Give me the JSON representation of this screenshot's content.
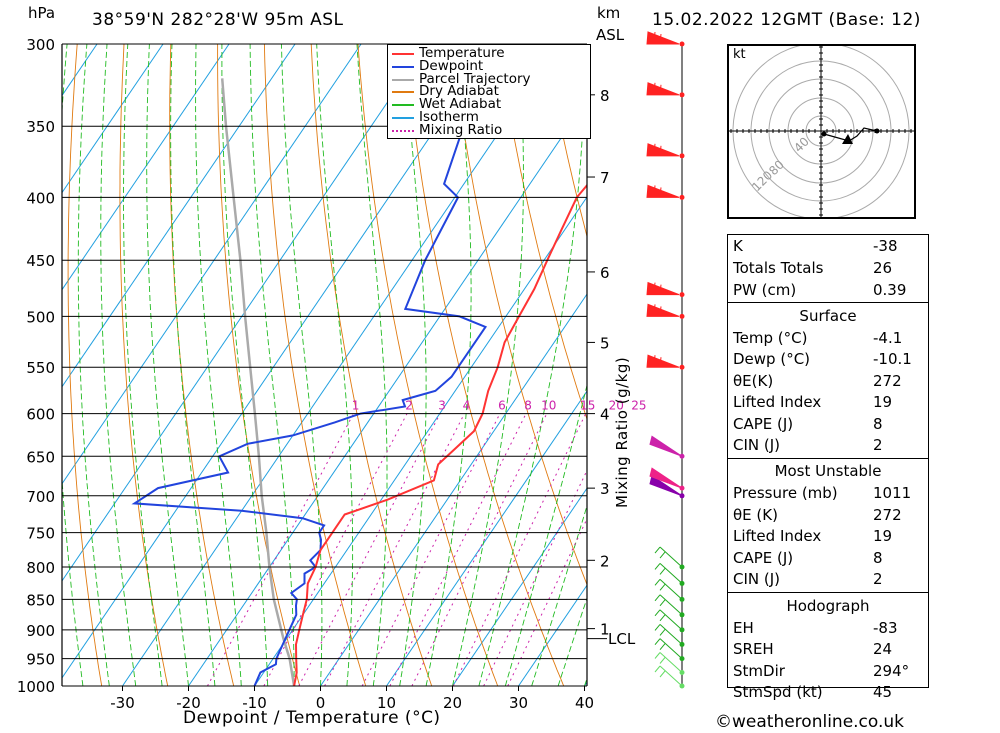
{
  "header": {
    "pressure_unit": "hPa",
    "location": "38°59'N  282°28'W  95m  ASL",
    "km_unit": "km",
    "asl_label": "ASL",
    "datetime": "15.02.2022  12GMT  (Base: 12)"
  },
  "chart_data": {
    "type": "line",
    "title": "38°59'N  282°28'W  95m  ASL",
    "xlabel": "Dewpoint / Temperature (°C)",
    "ylabel": "hPa",
    "xlim": [
      -40,
      40
    ],
    "ylim": [
      1000,
      300
    ],
    "y_scale": "log",
    "x_ticks": [
      -30,
      -20,
      -10,
      0,
      10,
      20,
      30,
      40
    ],
    "pressure_levels": [
      300,
      350,
      400,
      450,
      500,
      550,
      600,
      650,
      700,
      750,
      800,
      850,
      900,
      950,
      1000
    ],
    "km_ticks": [
      {
        "label": "8",
        "p": 330
      },
      {
        "label": "7",
        "p": 385
      },
      {
        "label": "6",
        "p": 460
      },
      {
        "label": "5",
        "p": 525
      },
      {
        "label": "4",
        "p": 600
      },
      {
        "label": "3",
        "p": 690
      },
      {
        "label": "2",
        "p": 790
      },
      {
        "label": "1",
        "p": 898
      }
    ],
    "lcl_label": "LCL",
    "lcl_p": 915,
    "mixing_ratio_title": "Mixing Ratio (g/kg)",
    "mixing_ratio_labels": [
      "1",
      "2",
      "3",
      "4",
      "6",
      "8",
      "10",
      "15",
      "20",
      "25"
    ],
    "legend": [
      "Temperature",
      "Dewpoint",
      "Parcel Trajectory",
      "Dry Adiabat",
      "Wet Adiabat",
      "Isotherm",
      "Mixing Ratio"
    ],
    "legend_position": "top-right",
    "colors": {
      "temperature": "#ff3333",
      "dewpoint": "#2244dd",
      "parcel": "#aaaaaa",
      "dry_adiabat": "#e07a10",
      "wet_adiabat": "#22bb22",
      "isotherm": "#22a0e0",
      "mixing_ratio": "#cc22aa"
    },
    "series": [
      {
        "name": "Temperature",
        "points": [
          {
            "p": 1000,
            "t": -4.0
          },
          {
            "p": 975,
            "t": -5.0
          },
          {
            "p": 950,
            "t": -6.5
          },
          {
            "p": 925,
            "t": -8.0
          },
          {
            "p": 900,
            "t": -9.0
          },
          {
            "p": 875,
            "t": -10.0
          },
          {
            "p": 850,
            "t": -11.0
          },
          {
            "p": 825,
            "t": -12.5
          },
          {
            "p": 800,
            "t": -13.0
          },
          {
            "p": 775,
            "t": -14.0
          },
          {
            "p": 750,
            "t": -14.0
          },
          {
            "p": 725,
            "t": -14.0
          },
          {
            "p": 705,
            "t": -9.0
          },
          {
            "p": 680,
            "t": -4.0
          },
          {
            "p": 660,
            "t": -5.0
          },
          {
            "p": 640,
            "t": -4.0
          },
          {
            "p": 620,
            "t": -3.0
          },
          {
            "p": 600,
            "t": -3.5
          },
          {
            "p": 575,
            "t": -5.0
          },
          {
            "p": 550,
            "t": -6.0
          },
          {
            "p": 525,
            "t": -7.5
          },
          {
            "p": 500,
            "t": -8.0
          },
          {
            "p": 475,
            "t": -8.5
          },
          {
            "p": 450,
            "t": -9.5
          },
          {
            "p": 425,
            "t": -10.5
          },
          {
            "p": 400,
            "t": -11.5
          },
          {
            "p": 385,
            "t": -11.0
          },
          {
            "p": 370,
            "t": -11.0
          },
          {
            "p": 350,
            "t": -10.0
          },
          {
            "p": 325,
            "t": -8.5
          },
          {
            "p": 310,
            "t": -6.5
          },
          {
            "p": 300,
            "t": -4.0
          }
        ]
      },
      {
        "name": "Dewpoint",
        "points": [
          {
            "p": 1000,
            "t": -10.0
          },
          {
            "p": 975,
            "t": -10.5
          },
          {
            "p": 960,
            "t": -9.0
          },
          {
            "p": 950,
            "t": -9.5
          },
          {
            "p": 925,
            "t": -10.0
          },
          {
            "p": 900,
            "t": -10.5
          },
          {
            "p": 875,
            "t": -11.0
          },
          {
            "p": 860,
            "t": -12.0
          },
          {
            "p": 850,
            "t": -12.5
          },
          {
            "p": 840,
            "t": -14.0
          },
          {
            "p": 825,
            "t": -13.0
          },
          {
            "p": 810,
            "t": -14.0
          },
          {
            "p": 800,
            "t": -13.0
          },
          {
            "p": 790,
            "t": -14.5
          },
          {
            "p": 775,
            "t": -14.0
          },
          {
            "p": 760,
            "t": -15.0
          },
          {
            "p": 750,
            "t": -16.0
          },
          {
            "p": 740,
            "t": -16.0
          },
          {
            "p": 730,
            "t": -20.0
          },
          {
            "p": 720,
            "t": -30.0
          },
          {
            "p": 710,
            "t": -47.0
          },
          {
            "p": 690,
            "t": -45.0
          },
          {
            "p": 670,
            "t": -36.0
          },
          {
            "p": 650,
            "t": -39.0
          },
          {
            "p": 635,
            "t": -36.0
          },
          {
            "p": 625,
            "t": -30.0
          },
          {
            "p": 610,
            "t": -25.0
          },
          {
            "p": 600,
            "t": -22.0
          },
          {
            "p": 592,
            "t": -16.0
          },
          {
            "p": 585,
            "t": -17.0
          },
          {
            "p": 575,
            "t": -13.0
          },
          {
            "p": 560,
            "t": -12.0
          },
          {
            "p": 545,
            "t": -12.0
          },
          {
            "p": 510,
            "t": -12.0
          },
          {
            "p": 500,
            "t": -17.0
          },
          {
            "p": 493,
            "t": -26.0
          },
          {
            "p": 450,
            "t": -28.0
          },
          {
            "p": 400,
            "t": -29.5
          },
          {
            "p": 390,
            "t": -33.0
          },
          {
            "p": 350,
            "t": -36.0
          },
          {
            "p": 325,
            "t": -37.0
          },
          {
            "p": 300,
            "t": -34.0
          }
        ]
      },
      {
        "name": "Parcel Trajectory",
        "points": [
          {
            "p": 1000,
            "t": -4.0
          },
          {
            "p": 950,
            "t": -7.5
          },
          {
            "p": 915,
            "t": -10.5
          },
          {
            "p": 850,
            "t": -16.0
          },
          {
            "p": 800,
            "t": -20.0
          },
          {
            "p": 750,
            "t": -24.0
          },
          {
            "p": 700,
            "t": -28.5
          },
          {
            "p": 650,
            "t": -33.0
          },
          {
            "p": 600,
            "t": -38.0
          },
          {
            "p": 550,
            "t": -43.5
          },
          {
            "p": 500,
            "t": -49.5
          },
          {
            "p": 450,
            "t": -56.0
          },
          {
            "p": 400,
            "t": -63.5
          },
          {
            "p": 350,
            "t": -72.0
          },
          {
            "p": 320,
            "t": -77.5
          }
        ]
      }
    ]
  },
  "winds": {
    "levels": [
      1000,
      975,
      950,
      925,
      900,
      875,
      850,
      825,
      800,
      700,
      690,
      650,
      550,
      500,
      480,
      400,
      370,
      330,
      300
    ],
    "colors": [
      "#66dd66",
      "#66dd66",
      "#22aa22",
      "#22aa22",
      "#22aa22",
      "#22aa22",
      "#22aa22",
      "#22aa22",
      "#22aa22",
      "#8800aa",
      "#ee2288",
      "#cc22aa",
      "#ff2222",
      "#ff2222",
      "#ff2222",
      "#ff2222",
      "#ff2222",
      "#ff2222",
      "#ff2222"
    ]
  },
  "hodograph": {
    "unit": "kt",
    "ring_labels": [
      "40",
      "80",
      "120"
    ]
  },
  "indices": {
    "k": {
      "label": "K",
      "value": "-38"
    },
    "tt": {
      "label": "Totals Totals",
      "value": "26"
    },
    "pw": {
      "label": "PW (cm)",
      "value": "0.39"
    }
  },
  "surface": {
    "title": "Surface",
    "temp": {
      "label": "Temp (°C)",
      "value": "-4.1"
    },
    "dewp": {
      "label": "Dewp (°C)",
      "value": "-10.1"
    },
    "theta_e": {
      "label": "θE(K)",
      "value": "272"
    },
    "li": {
      "label": "Lifted Index",
      "value": "19"
    },
    "cape": {
      "label": "CAPE (J)",
      "value": "8"
    },
    "cin": {
      "label": "CIN (J)",
      "value": "2"
    }
  },
  "most_unstable": {
    "title": "Most Unstable",
    "pressure": {
      "label": "Pressure (mb)",
      "value": "1011"
    },
    "theta_e": {
      "label": "θE (K)",
      "value": "272"
    },
    "li": {
      "label": "Lifted Index",
      "value": "19"
    },
    "cape": {
      "label": "CAPE (J)",
      "value": "8"
    },
    "cin": {
      "label": "CIN (J)",
      "value": "2"
    }
  },
  "hodo_stats": {
    "title": "Hodograph",
    "eh": {
      "label": "EH",
      "value": "-83"
    },
    "sreh": {
      "label": "SREH",
      "value": "24"
    },
    "stmdir": {
      "label": "StmDir",
      "value": "294°"
    },
    "stmspd": {
      "label": "StmSpd (kt)",
      "value": "45"
    }
  },
  "footer": {
    "copyright": "©weatheronline.co.uk"
  }
}
